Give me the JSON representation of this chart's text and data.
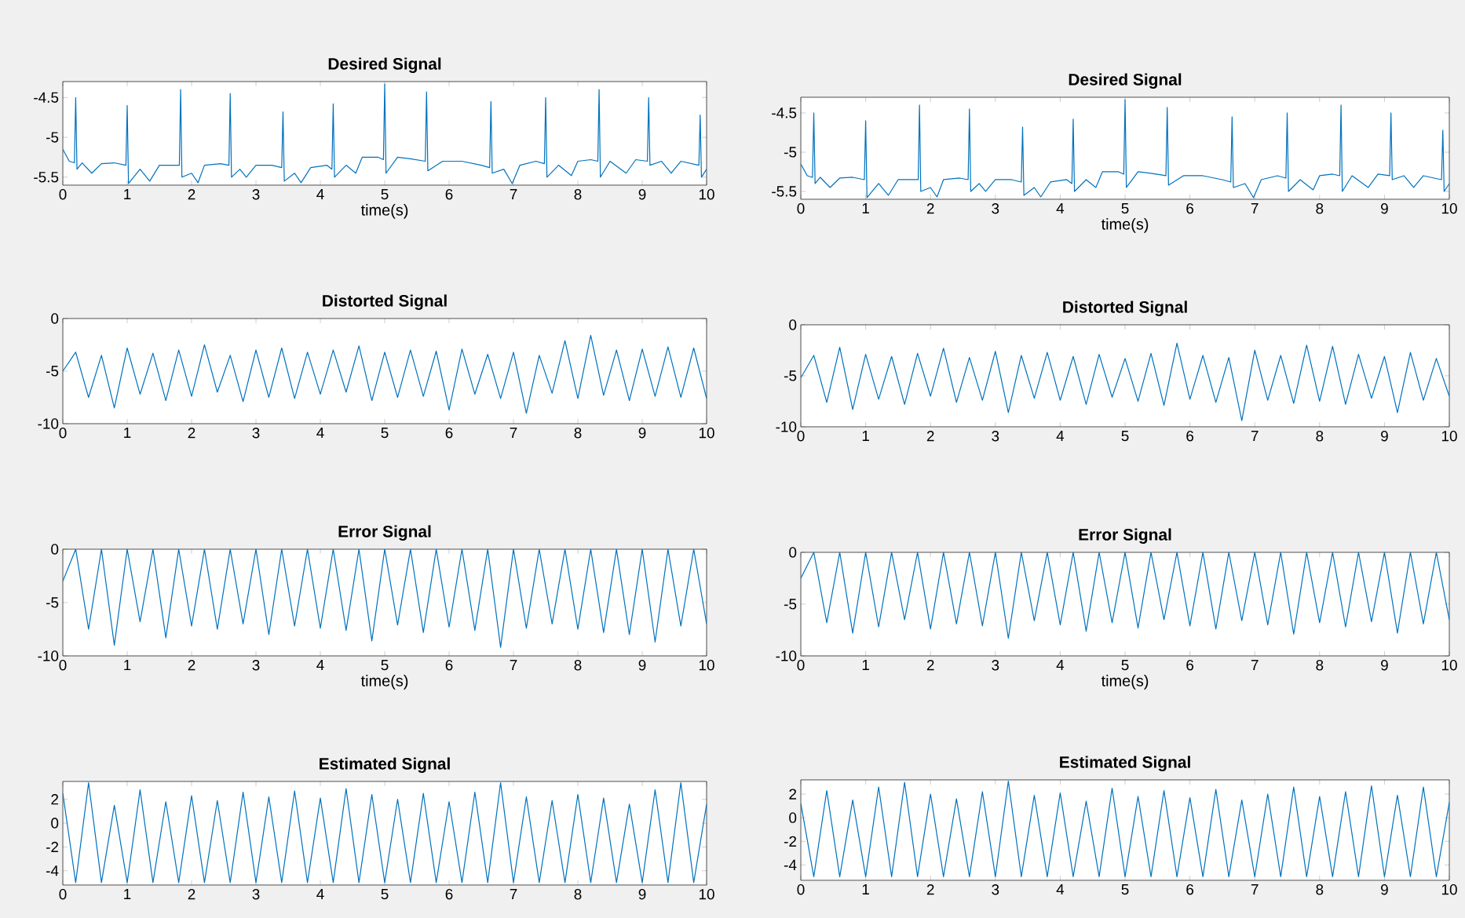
{
  "chart_data": [
    {
      "type": "line",
      "title": "Desired Signal",
      "xlabel": "time(s)",
      "color": "#0072bd",
      "xlim": [
        0,
        10
      ],
      "ylim": [
        -5.6,
        -4.3
      ],
      "xticks": [
        0,
        1,
        2,
        3,
        4,
        5,
        6,
        7,
        8,
        9,
        10
      ],
      "yticks": [
        -5.5,
        -5,
        -4.5
      ],
      "x": [
        0,
        0.1,
        0.18,
        0.2,
        0.22,
        0.3,
        0.45,
        0.6,
        0.8,
        0.98,
        1.0,
        1.02,
        1.2,
        1.35,
        1.5,
        1.7,
        1.81,
        1.83,
        1.85,
        2.0,
        2.1,
        2.2,
        2.45,
        2.58,
        2.6,
        2.62,
        2.75,
        2.85,
        3.0,
        3.25,
        3.4,
        3.42,
        3.44,
        3.6,
        3.7,
        3.85,
        4.1,
        4.18,
        4.2,
        4.22,
        4.4,
        4.55,
        4.65,
        4.9,
        4.98,
        5.0,
        5.02,
        5.2,
        5.4,
        5.63,
        5.65,
        5.67,
        5.9,
        6.2,
        6.5,
        6.63,
        6.65,
        6.67,
        6.85,
        6.98,
        7.1,
        7.35,
        7.48,
        7.5,
        7.52,
        7.7,
        7.9,
        8.0,
        8.2,
        8.31,
        8.33,
        8.35,
        8.5,
        8.75,
        8.9,
        9.08,
        9.1,
        9.12,
        9.3,
        9.45,
        9.6,
        9.88,
        9.9,
        9.92,
        10.0
      ],
      "values": [
        -5.15,
        -5.3,
        -5.32,
        -4.5,
        -5.4,
        -5.32,
        -5.45,
        -5.33,
        -5.32,
        -5.35,
        -4.6,
        -5.58,
        -5.4,
        -5.55,
        -5.35,
        -5.35,
        -5.35,
        -4.4,
        -5.5,
        -5.45,
        -5.57,
        -5.35,
        -5.33,
        -5.35,
        -4.45,
        -5.5,
        -5.4,
        -5.5,
        -5.35,
        -5.35,
        -5.38,
        -4.68,
        -5.55,
        -5.45,
        -5.57,
        -5.38,
        -5.35,
        -5.4,
        -4.58,
        -5.5,
        -5.35,
        -5.45,
        -5.25,
        -5.25,
        -5.28,
        -4.33,
        -5.45,
        -5.25,
        -5.27,
        -5.3,
        -4.43,
        -5.42,
        -5.3,
        -5.3,
        -5.35,
        -5.38,
        -4.55,
        -5.45,
        -5.4,
        -5.58,
        -5.35,
        -5.3,
        -5.33,
        -4.5,
        -5.5,
        -5.35,
        -5.48,
        -5.3,
        -5.28,
        -5.3,
        -4.4,
        -5.5,
        -5.3,
        -5.45,
        -5.28,
        -5.3,
        -4.5,
        -5.35,
        -5.3,
        -5.45,
        -5.3,
        -5.35,
        -4.72,
        -5.5,
        -5.4
      ]
    },
    {
      "type": "line",
      "title": "Distorted Signal",
      "color": "#0072bd",
      "xlim": [
        0,
        10
      ],
      "ylim": [
        -10,
        0
      ],
      "xticks": [
        0,
        1,
        2,
        3,
        4,
        5,
        6,
        7,
        8,
        9,
        10
      ],
      "yticks": [
        -10,
        -5,
        0
      ],
      "x": [
        0,
        0.2,
        0.4,
        0.6,
        0.8,
        1.0,
        1.2,
        1.4,
        1.6,
        1.8,
        2.0,
        2.2,
        2.4,
        2.6,
        2.8,
        3.0,
        3.2,
        3.4,
        3.6,
        3.8,
        4.0,
        4.2,
        4.4,
        4.6,
        4.8,
        5.0,
        5.2,
        5.4,
        5.6,
        5.8,
        6.0,
        6.2,
        6.4,
        6.6,
        6.8,
        7.0,
        7.2,
        7.4,
        7.6,
        7.8,
        8.0,
        8.2,
        8.4,
        8.6,
        8.8,
        9.0,
        9.2,
        9.4,
        9.6,
        9.8,
        10.0
      ],
      "values": [
        -5.0,
        -3.2,
        -7.5,
        -3.5,
        -8.5,
        -2.8,
        -7.2,
        -3.3,
        -7.8,
        -3.0,
        -7.4,
        -2.5,
        -7.0,
        -3.5,
        -7.9,
        -3.0,
        -7.5,
        -2.8,
        -7.6,
        -3.2,
        -7.2,
        -3.0,
        -7.0,
        -2.6,
        -7.8,
        -3.2,
        -7.5,
        -3.0,
        -7.4,
        -3.1,
        -8.7,
        -2.9,
        -7.2,
        -3.4,
        -7.6,
        -3.2,
        -9.0,
        -3.5,
        -7.1,
        -2.1,
        -7.6,
        -1.6,
        -7.3,
        -3.0,
        -7.8,
        -2.9,
        -7.4,
        -2.7,
        -7.5,
        -2.8,
        -7.6
      ]
    },
    {
      "type": "line",
      "title": "Error Signal",
      "xlabel": "time(s)",
      "color": "#0072bd",
      "xlim": [
        0,
        10
      ],
      "ylim": [
        -10,
        0
      ],
      "xticks": [
        0,
        1,
        2,
        3,
        4,
        5,
        6,
        7,
        8,
        9,
        10
      ],
      "yticks": [
        -10,
        -5,
        0
      ],
      "x": [
        0,
        0.2,
        0.4,
        0.6,
        0.8,
        1.0,
        1.2,
        1.4,
        1.6,
        1.8,
        2.0,
        2.2,
        2.4,
        2.6,
        2.8,
        3.0,
        3.2,
        3.4,
        3.6,
        3.8,
        4.0,
        4.2,
        4.4,
        4.6,
        4.8,
        5.0,
        5.2,
        5.4,
        5.6,
        5.8,
        6.0,
        6.2,
        6.4,
        6.6,
        6.8,
        7.0,
        7.2,
        7.4,
        7.6,
        7.8,
        8.0,
        8.2,
        8.4,
        8.6,
        8.8,
        9.0,
        9.2,
        9.4,
        9.6,
        9.8,
        10.0
      ],
      "values": [
        -3.0,
        0,
        -7.5,
        0,
        -9.0,
        0,
        -6.8,
        0,
        -8.3,
        0,
        -7.2,
        0,
        -7.5,
        0,
        -7.0,
        0,
        -8.0,
        0,
        -7.2,
        0,
        -7.4,
        0,
        -7.6,
        0,
        -8.6,
        0,
        -7.1,
        0,
        -7.8,
        0,
        -7.3,
        0,
        -7.6,
        0,
        -9.2,
        0,
        -7.4,
        0,
        -7.0,
        0,
        -7.5,
        0,
        -7.8,
        0,
        -8.0,
        0,
        -8.7,
        0,
        -7.2,
        0,
        -7.0
      ]
    },
    {
      "type": "line",
      "title": "Estimated Signal",
      "color": "#0072bd",
      "xlim": [
        0,
        10
      ],
      "ylim": [
        -5.2,
        3.5
      ],
      "xticks": [
        0,
        1,
        2,
        3,
        4,
        5,
        6,
        7,
        8,
        9,
        10
      ],
      "yticks": [
        -4,
        -2,
        0,
        2
      ],
      "x": [
        0,
        0.2,
        0.4,
        0.6,
        0.8,
        1.0,
        1.2,
        1.4,
        1.6,
        1.8,
        2.0,
        2.2,
        2.4,
        2.6,
        2.8,
        3.0,
        3.2,
        3.4,
        3.6,
        3.8,
        4.0,
        4.2,
        4.4,
        4.6,
        4.8,
        5.0,
        5.2,
        5.4,
        5.6,
        5.8,
        6.0,
        6.2,
        6.4,
        6.6,
        6.8,
        7.0,
        7.2,
        7.4,
        7.6,
        7.8,
        8.0,
        8.2,
        8.4,
        8.6,
        8.8,
        9.0,
        9.2,
        9.4,
        9.6,
        9.8,
        10.0
      ],
      "values": [
        2.5,
        -5.0,
        3.4,
        -5.0,
        1.5,
        -5.0,
        2.8,
        -5.0,
        1.8,
        -5.0,
        2.3,
        -5.0,
        1.9,
        -5.0,
        2.6,
        -5.0,
        2.2,
        -5.0,
        2.7,
        -5.0,
        2.1,
        -5.0,
        2.9,
        -5.0,
        2.4,
        -5.0,
        2.0,
        -5.0,
        2.5,
        -5.0,
        1.8,
        -5.0,
        2.6,
        -5.0,
        3.4,
        -5.0,
        2.2,
        -5.0,
        1.9,
        -5.0,
        2.4,
        -5.0,
        2.1,
        -5.0,
        1.6,
        -5.0,
        2.8,
        -5.0,
        3.4,
        -5.0,
        1.6
      ]
    },
    {
      "type": "line",
      "title": "Desired Signal",
      "xlabel": "time(s)",
      "color": "#0072bd",
      "xlim": [
        0,
        10
      ],
      "ylim": [
        -5.6,
        -4.3
      ],
      "xticks": [
        0,
        1,
        2,
        3,
        4,
        5,
        6,
        7,
        8,
        9,
        10
      ],
      "yticks": [
        -5.5,
        -5,
        -4.5
      ],
      "x": [
        0,
        0.1,
        0.18,
        0.2,
        0.22,
        0.3,
        0.45,
        0.6,
        0.8,
        0.98,
        1.0,
        1.02,
        1.2,
        1.35,
        1.5,
        1.7,
        1.81,
        1.83,
        1.85,
        2.0,
        2.1,
        2.2,
        2.45,
        2.58,
        2.6,
        2.62,
        2.75,
        2.85,
        3.0,
        3.25,
        3.4,
        3.42,
        3.44,
        3.6,
        3.7,
        3.85,
        4.1,
        4.18,
        4.2,
        4.22,
        4.4,
        4.55,
        4.65,
        4.9,
        4.98,
        5.0,
        5.02,
        5.2,
        5.4,
        5.63,
        5.65,
        5.67,
        5.9,
        6.2,
        6.5,
        6.63,
        6.65,
        6.67,
        6.85,
        6.98,
        7.1,
        7.35,
        7.48,
        7.5,
        7.52,
        7.7,
        7.9,
        8.0,
        8.2,
        8.31,
        8.33,
        8.35,
        8.5,
        8.75,
        8.9,
        9.08,
        9.1,
        9.12,
        9.3,
        9.45,
        9.6,
        9.88,
        9.9,
        9.92,
        10.0
      ],
      "values": [
        -5.15,
        -5.3,
        -5.32,
        -4.5,
        -5.4,
        -5.32,
        -5.45,
        -5.33,
        -5.32,
        -5.35,
        -4.6,
        -5.58,
        -5.4,
        -5.55,
        -5.35,
        -5.35,
        -5.35,
        -4.4,
        -5.5,
        -5.45,
        -5.57,
        -5.35,
        -5.33,
        -5.35,
        -4.45,
        -5.5,
        -5.4,
        -5.5,
        -5.35,
        -5.35,
        -5.38,
        -4.68,
        -5.55,
        -5.45,
        -5.57,
        -5.38,
        -5.35,
        -5.4,
        -4.58,
        -5.5,
        -5.35,
        -5.45,
        -5.25,
        -5.25,
        -5.28,
        -4.33,
        -5.45,
        -5.25,
        -5.27,
        -5.3,
        -4.43,
        -5.42,
        -5.3,
        -5.3,
        -5.35,
        -5.38,
        -4.55,
        -5.45,
        -5.4,
        -5.58,
        -5.35,
        -5.3,
        -5.33,
        -4.5,
        -5.5,
        -5.35,
        -5.48,
        -5.3,
        -5.28,
        -5.3,
        -4.4,
        -5.5,
        -5.3,
        -5.45,
        -5.28,
        -5.3,
        -4.5,
        -5.35,
        -5.3,
        -5.45,
        -5.3,
        -5.35,
        -4.72,
        -5.5,
        -5.4
      ]
    },
    {
      "type": "line",
      "title": "Distorted Signal",
      "color": "#0072bd",
      "xlim": [
        0,
        10
      ],
      "ylim": [
        -10,
        0
      ],
      "xticks": [
        0,
        1,
        2,
        3,
        4,
        5,
        6,
        7,
        8,
        9,
        10
      ],
      "yticks": [
        -10,
        -5,
        0
      ],
      "x": [
        0,
        0.2,
        0.4,
        0.6,
        0.8,
        1.0,
        1.2,
        1.4,
        1.6,
        1.8,
        2.0,
        2.2,
        2.4,
        2.6,
        2.8,
        3.0,
        3.2,
        3.4,
        3.6,
        3.8,
        4.0,
        4.2,
        4.4,
        4.6,
        4.8,
        5.0,
        5.2,
        5.4,
        5.6,
        5.8,
        6.0,
        6.2,
        6.4,
        6.6,
        6.8,
        7.0,
        7.2,
        7.4,
        7.6,
        7.8,
        8.0,
        8.2,
        8.4,
        8.6,
        8.8,
        9.0,
        9.2,
        9.4,
        9.6,
        9.8,
        10.0
      ],
      "values": [
        -5.2,
        -3.0,
        -7.6,
        -2.2,
        -8.3,
        -2.9,
        -7.3,
        -3.1,
        -7.8,
        -2.8,
        -7.0,
        -2.3,
        -7.6,
        -3.2,
        -7.4,
        -2.6,
        -8.6,
        -3.0,
        -7.2,
        -2.7,
        -7.4,
        -3.1,
        -7.8,
        -2.9,
        -7.1,
        -3.3,
        -7.5,
        -2.8,
        -7.9,
        -1.8,
        -7.3,
        -3.0,
        -7.6,
        -3.2,
        -9.4,
        -2.5,
        -7.4,
        -3.0,
        -7.7,
        -2.0,
        -7.5,
        -2.1,
        -7.8,
        -2.9,
        -7.2,
        -3.1,
        -8.6,
        -2.7,
        -7.4,
        -3.3,
        -7.0
      ]
    },
    {
      "type": "line",
      "title": "Error Signal",
      "xlabel": "time(s)",
      "color": "#0072bd",
      "xlim": [
        0,
        10
      ],
      "ylim": [
        -10,
        0
      ],
      "xticks": [
        0,
        1,
        2,
        3,
        4,
        5,
        6,
        7,
        8,
        9,
        10
      ],
      "yticks": [
        -10,
        -5,
        0
      ],
      "x": [
        0,
        0.2,
        0.4,
        0.6,
        0.8,
        1.0,
        1.2,
        1.4,
        1.6,
        1.8,
        2.0,
        2.2,
        2.4,
        2.6,
        2.8,
        3.0,
        3.2,
        3.4,
        3.6,
        3.8,
        4.0,
        4.2,
        4.4,
        4.6,
        4.8,
        5.0,
        5.2,
        5.4,
        5.6,
        5.8,
        6.0,
        6.2,
        6.4,
        6.6,
        6.8,
        7.0,
        7.2,
        7.4,
        7.6,
        7.8,
        8.0,
        8.2,
        8.4,
        8.6,
        8.8,
        9.0,
        9.2,
        9.4,
        9.6,
        9.8,
        10.0
      ],
      "values": [
        -2.5,
        0,
        -6.8,
        0,
        -7.8,
        0,
        -7.2,
        0,
        -6.5,
        0,
        -7.4,
        0,
        -6.9,
        0,
        -7.1,
        0,
        -8.3,
        0,
        -6.6,
        0,
        -7.0,
        0,
        -7.6,
        0,
        -6.8,
        0,
        -7.3,
        0,
        -6.5,
        0,
        -7.1,
        0,
        -7.4,
        0,
        -6.6,
        0,
        -7.0,
        0,
        -7.9,
        0,
        -6.8,
        0,
        -7.2,
        0,
        -6.7,
        0,
        -7.8,
        0,
        -6.9,
        0,
        -6.5
      ]
    },
    {
      "type": "line",
      "title": "Estimated Signal",
      "color": "#0072bd",
      "xlim": [
        0,
        10
      ],
      "ylim": [
        -5.3,
        3.2
      ],
      "xticks": [
        0,
        1,
        2,
        3,
        4,
        5,
        6,
        7,
        8,
        9,
        10
      ],
      "yticks": [
        -4,
        -2,
        0,
        2
      ],
      "x": [
        0,
        0.2,
        0.4,
        0.6,
        0.8,
        1.0,
        1.2,
        1.4,
        1.6,
        1.8,
        2.0,
        2.2,
        2.4,
        2.6,
        2.8,
        3.0,
        3.2,
        3.4,
        3.6,
        3.8,
        4.0,
        4.2,
        4.4,
        4.6,
        4.8,
        5.0,
        5.2,
        5.4,
        5.6,
        5.8,
        6.0,
        6.2,
        6.4,
        6.6,
        6.8,
        7.0,
        7.2,
        7.4,
        7.6,
        7.8,
        8.0,
        8.2,
        8.4,
        8.6,
        8.8,
        9.0,
        9.2,
        9.4,
        9.6,
        9.8,
        10.0
      ],
      "values": [
        1.2,
        -5.0,
        2.3,
        -5.0,
        1.5,
        -5.0,
        2.6,
        -5.0,
        3.0,
        -5.0,
        2.0,
        -5.0,
        1.6,
        -5.0,
        2.2,
        -5.0,
        3.1,
        -5.0,
        1.9,
        -5.0,
        2.1,
        -5.0,
        1.4,
        -5.0,
        2.5,
        -5.0,
        1.8,
        -5.0,
        2.3,
        -5.0,
        1.7,
        -5.0,
        2.4,
        -5.0,
        1.5,
        -5.0,
        2.0,
        -5.0,
        2.6,
        -5.0,
        1.8,
        -5.0,
        2.2,
        -5.0,
        2.7,
        -5.0,
        1.9,
        -5.0,
        2.6,
        -5.0,
        1.3
      ]
    }
  ]
}
